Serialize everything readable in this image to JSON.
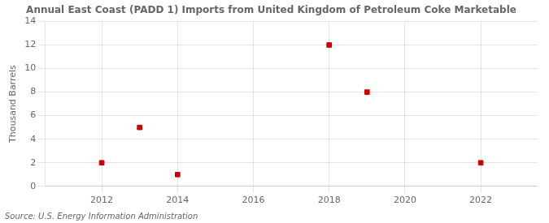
{
  "chart_data": {
    "type": "scatter",
    "title": "Annual East Coast (PADD 1) Imports from United Kingdom of Petroleum Coke Marketable",
    "ylabel": "Thousand Barrels",
    "annotation": "Source: U.S. Energy Information Administration",
    "x": [
      2012,
      2013,
      2014,
      2018,
      2019,
      2022
    ],
    "values": [
      2,
      5,
      1,
      12,
      8,
      2
    ],
    "color": "#cc0000",
    "marker": "square",
    "xlim": [
      2010.5,
      2023.5
    ],
    "ylim": [
      0,
      14
    ],
    "xticks": [
      2012,
      2014,
      2016,
      2018,
      2020,
      2022
    ],
    "yticks": [
      0,
      2,
      4,
      6,
      8,
      10,
      12,
      14
    ],
    "grid": true
  }
}
